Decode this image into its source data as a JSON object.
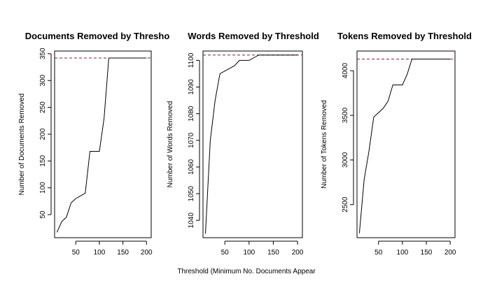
{
  "figure": {
    "xlabel": "Threshold (Minimum No. Documents Appear"
  },
  "chart_data": [
    {
      "type": "line",
      "title": "Documents Removed by Thresho",
      "xlabel": "",
      "ylabel": "Number of Documents Removed",
      "xlim": [
        5,
        210
      ],
      "ylim": [
        7,
        355
      ],
      "xticks": [
        50,
        100,
        150,
        200
      ],
      "yticks": [
        50,
        100,
        150,
        200,
        250,
        300,
        350
      ],
      "grid": false,
      "x": [
        10,
        20,
        30,
        40,
        50,
        60,
        70,
        80,
        90,
        100,
        110,
        120,
        130,
        140,
        150,
        160,
        170,
        180,
        190,
        200
      ],
      "values": [
        17,
        37,
        45,
        72,
        80,
        85,
        90,
        168,
        168,
        168,
        230,
        342,
        342,
        342,
        342,
        342,
        342,
        342,
        342,
        342
      ],
      "reference_line": 342,
      "line_color": "#000000",
      "reference_color": "#8b1a3c"
    },
    {
      "type": "line",
      "title": "Words Removed by Threshold",
      "xlabel": "",
      "ylabel": "Number of Words Removed",
      "xlim": [
        5,
        210
      ],
      "ylim": [
        1033.5,
        1103.5
      ],
      "xticks": [
        50,
        100,
        150,
        200
      ],
      "yticks": [
        1040,
        1050,
        1060,
        1070,
        1080,
        1090,
        1100
      ],
      "grid": false,
      "x": [
        10,
        20,
        30,
        40,
        50,
        60,
        70,
        80,
        90,
        100,
        110,
        120,
        130,
        140,
        150,
        160,
        170,
        180,
        190,
        200
      ],
      "values": [
        1035,
        1070,
        1085,
        1095,
        1096,
        1097,
        1098,
        1100,
        1100,
        1100,
        1101,
        1102,
        1102,
        1102,
        1102,
        1102,
        1102,
        1102,
        1102,
        1102
      ],
      "reference_line": 1102,
      "line_color": "#000000",
      "reference_color": "#8b1a3c"
    },
    {
      "type": "line",
      "title": "Tokens Removed by Threshold",
      "xlabel": "",
      "ylabel": "Number of Tokens Removed",
      "xlim": [
        5,
        210
      ],
      "ylim": [
        2130,
        4220
      ],
      "xticks": [
        50,
        100,
        150,
        200
      ],
      "yticks": [
        2500,
        3000,
        3500,
        4000
      ],
      "grid": false,
      "x": [
        10,
        20,
        30,
        40,
        50,
        60,
        70,
        80,
        90,
        100,
        110,
        120,
        130,
        140,
        150,
        160,
        170,
        180,
        190,
        200
      ],
      "values": [
        2180,
        2780,
        3100,
        3480,
        3530,
        3580,
        3660,
        3840,
        3840,
        3840,
        3960,
        4130,
        4130,
        4130,
        4130,
        4130,
        4130,
        4130,
        4130,
        4130
      ],
      "reference_line": 4130,
      "line_color": "#000000",
      "reference_color": "#8b1a3c"
    }
  ]
}
